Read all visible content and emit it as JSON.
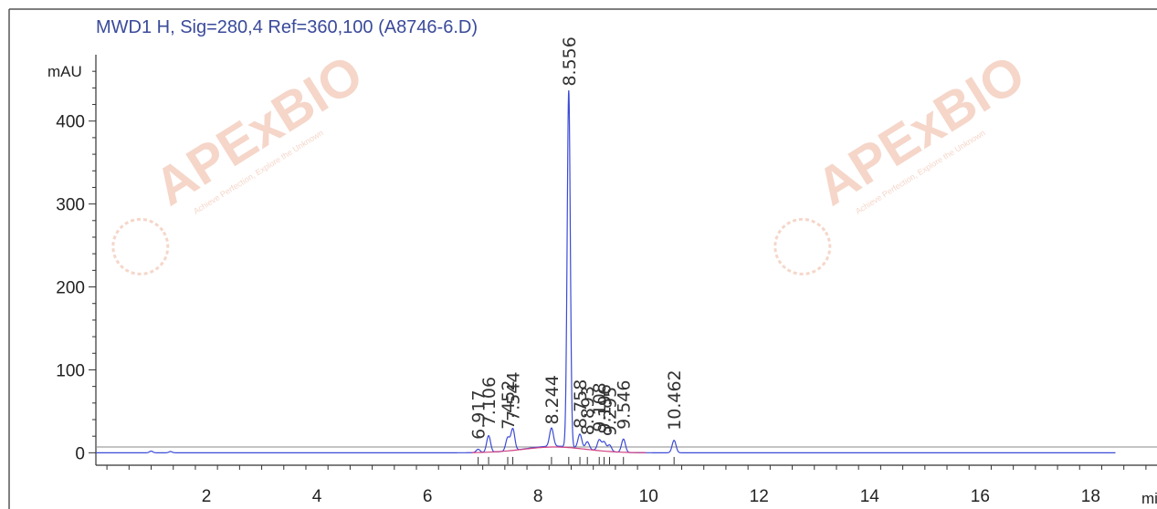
{
  "chart_data": {
    "type": "line",
    "title": "MWD1 H, Sig=280,4 Ref=360,100 (A8746-6.D)",
    "xlabel": "min",
    "ylabel": "mAU",
    "xlim": [
      0,
      19.2
    ],
    "ylim": [
      -15,
      480
    ],
    "x_ticks": [
      2,
      4,
      6,
      8,
      10,
      12,
      14,
      16,
      18
    ],
    "x_tick_labels": [
      "2",
      "4",
      "6",
      "8",
      "10",
      "12",
      "14",
      "16",
      "18"
    ],
    "y_ticks": [
      0,
      100,
      200,
      300,
      400
    ],
    "y_tick_labels": [
      "0",
      "100",
      "200",
      "300",
      "400"
    ],
    "grid": false,
    "legend": "none",
    "series": [
      {
        "color": "#3b4bd6",
        "peaks": [
          {
            "label": "6.917",
            "rt": 6.917,
            "height": 4
          },
          {
            "label": "7.106",
            "rt": 7.106,
            "height": 20
          },
          {
            "label": "7.452",
            "rt": 7.452,
            "height": 16
          },
          {
            "label": "7.544",
            "rt": 7.544,
            "height": 26
          },
          {
            "label": "8.244",
            "rt": 8.244,
            "height": 22
          },
          {
            "label": "8.556",
            "rt": 8.556,
            "height": 430
          },
          {
            "label": "8.758",
            "rt": 8.758,
            "height": 17
          },
          {
            "label": "8.893",
            "rt": 8.893,
            "height": 9
          },
          {
            "label": "9.108",
            "rt": 9.108,
            "height": 13
          },
          {
            "label": "9.196",
            "rt": 9.196,
            "height": 11
          },
          {
            "label": "9.295",
            "rt": 9.295,
            "height": 8
          },
          {
            "label": "9.546",
            "rt": 9.546,
            "height": 16
          },
          {
            "label": "10.462",
            "rt": 10.462,
            "height": 15
          }
        ]
      },
      {
        "color": "#d04080",
        "baseline_segment": [
          6.8,
          10.0
        ]
      }
    ]
  },
  "watermark": {
    "brand": "APExBIO",
    "tagline": "Achieve Perfection, Explore the Unknown",
    "color": "#f2c9b8"
  }
}
